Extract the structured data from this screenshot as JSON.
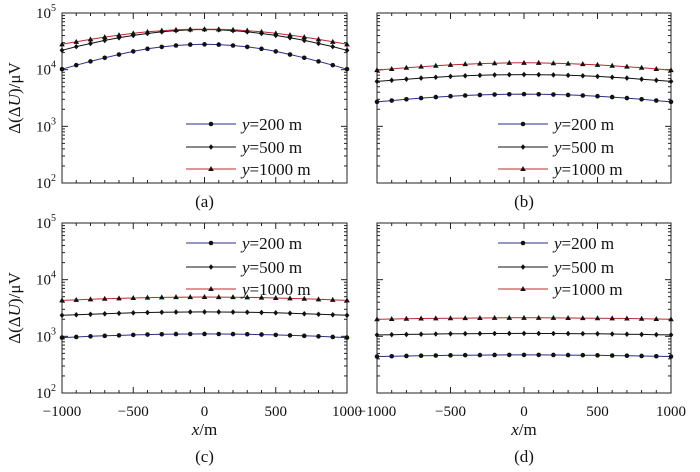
{
  "chart_data": [
    {
      "panel": "(a)",
      "type": "line",
      "ylabel": "Δ(ΔU)/μV",
      "xlabel": "",
      "xlim": [
        -1000,
        1000
      ],
      "ylim": [
        100,
        100000
      ],
      "yscale": "log",
      "legend_position": "bottom-right",
      "x": [
        -1000,
        -900,
        -800,
        -700,
        -600,
        -500,
        -400,
        -300,
        -200,
        -100,
        0,
        100,
        200,
        300,
        400,
        500,
        600,
        700,
        800,
        900,
        1000
      ],
      "series": [
        {
          "name": "y=200 m",
          "marker": "circle",
          "color": "#2b2d8c",
          "values": [
            10200,
            12000,
            14000,
            16200,
            18500,
            21000,
            23300,
            25200,
            26700,
            27700,
            28000,
            27700,
            26700,
            25200,
            23300,
            21000,
            18500,
            16200,
            14000,
            12000,
            10200
          ]
        },
        {
          "name": "y=500 m",
          "marker": "diamond",
          "color": "#111111",
          "values": [
            22000,
            25500,
            29000,
            32800,
            36500,
            40200,
            43500,
            46500,
            49000,
            50600,
            51200,
            50600,
            49000,
            46500,
            43500,
            40200,
            36500,
            32800,
            29000,
            25500,
            22000
          ]
        },
        {
          "name": "y=1000 m",
          "marker": "triangle",
          "color": "#c0282d",
          "values": [
            28000,
            31000,
            34200,
            37500,
            40800,
            43800,
            46500,
            48800,
            50500,
            51500,
            51800,
            51500,
            50500,
            48800,
            46500,
            43800,
            40800,
            37500,
            34200,
            31000,
            28000
          ]
        }
      ],
      "tick_labels_y": [
        "10^2",
        "10^3",
        "10^4",
        "10^5"
      ],
      "tick_labels_x": []
    },
    {
      "panel": "(b)",
      "type": "line",
      "ylabel": "",
      "xlabel": "",
      "xlim": [
        -1000,
        1000
      ],
      "ylim": [
        100,
        100000
      ],
      "yscale": "log",
      "legend_position": "bottom-right",
      "x": [
        -1000,
        -900,
        -800,
        -700,
        -600,
        -500,
        -400,
        -300,
        -200,
        -100,
        0,
        100,
        200,
        300,
        400,
        500,
        600,
        700,
        800,
        900,
        1000
      ],
      "series": [
        {
          "name": "y=200 m",
          "marker": "circle",
          "color": "#2b2d8c",
          "values": [
            2700,
            2850,
            3000,
            3150,
            3280,
            3400,
            3500,
            3580,
            3640,
            3680,
            3700,
            3680,
            3640,
            3580,
            3500,
            3400,
            3280,
            3150,
            3000,
            2850,
            2700
          ]
        },
        {
          "name": "y=500 m",
          "marker": "diamond",
          "color": "#111111",
          "values": [
            6200,
            6500,
            6800,
            7100,
            7350,
            7600,
            7800,
            7950,
            8080,
            8160,
            8200,
            8160,
            8080,
            7950,
            7800,
            7600,
            7350,
            7100,
            6800,
            6500,
            6200
          ]
        },
        {
          "name": "y=1000 m",
          "marker": "triangle",
          "color": "#c0282d",
          "values": [
            9800,
            10300,
            10800,
            11300,
            11750,
            12150,
            12500,
            12800,
            13000,
            13150,
            13200,
            13150,
            13000,
            12800,
            12500,
            12150,
            11750,
            11300,
            10800,
            10300,
            9800
          ]
        }
      ],
      "tick_labels_y": [],
      "tick_labels_x": []
    },
    {
      "panel": "(c)",
      "type": "line",
      "ylabel": "Δ(ΔU)/μV",
      "xlabel": "x/m",
      "xlim": [
        -1000,
        1000
      ],
      "ylim": [
        100,
        100000
      ],
      "yscale": "log",
      "legend_position": "top-right",
      "x": [
        -1000,
        -900,
        -800,
        -700,
        -600,
        -500,
        -400,
        -300,
        -200,
        -100,
        0,
        100,
        200,
        300,
        400,
        500,
        600,
        700,
        800,
        900,
        1000
      ],
      "series": [
        {
          "name": "y=200 m",
          "marker": "circle",
          "color": "#2b2d8c",
          "values": [
            950,
            975,
            1000,
            1020,
            1040,
            1060,
            1075,
            1088,
            1096,
            1100,
            1102,
            1100,
            1096,
            1088,
            1075,
            1060,
            1040,
            1020,
            1000,
            975,
            950
          ]
        },
        {
          "name": "y=500 m",
          "marker": "diamond",
          "color": "#111111",
          "values": [
            2350,
            2400,
            2450,
            2500,
            2550,
            2600,
            2630,
            2660,
            2680,
            2690,
            2700,
            2690,
            2680,
            2660,
            2630,
            2600,
            2550,
            2500,
            2450,
            2400,
            2350
          ]
        },
        {
          "name": "y=1000 m",
          "marker": "triangle",
          "color": "#c0282d",
          "values": [
            4300,
            4400,
            4500,
            4600,
            4680,
            4750,
            4820,
            4870,
            4910,
            4930,
            4940,
            4930,
            4910,
            4870,
            4820,
            4750,
            4680,
            4600,
            4500,
            4400,
            4300
          ]
        }
      ],
      "tick_labels_y": [
        "10^2",
        "10^3",
        "10^4",
        "10^5"
      ],
      "tick_labels_x": [
        "−1000",
        "−500",
        "0",
        "500",
        "1000"
      ]
    },
    {
      "panel": "(d)",
      "type": "line",
      "ylabel": "",
      "xlabel": "x/m",
      "xlim": [
        -1000,
        1000
      ],
      "ylim": [
        100,
        100000
      ],
      "yscale": "log",
      "legend_position": "top-right",
      "x": [
        -1000,
        -900,
        -800,
        -700,
        -600,
        -500,
        -400,
        -300,
        -200,
        -100,
        0,
        100,
        200,
        300,
        400,
        500,
        600,
        700,
        800,
        900,
        1000
      ],
      "series": [
        {
          "name": "y=200 m",
          "marker": "circle",
          "color": "#2b2d8c",
          "values": [
            440,
            445,
            450,
            455,
            458,
            462,
            465,
            467,
            469,
            470,
            470,
            470,
            469,
            467,
            465,
            462,
            458,
            455,
            450,
            445,
            440
          ]
        },
        {
          "name": "y=500 m",
          "marker": "diamond",
          "color": "#111111",
          "values": [
            1060,
            1070,
            1080,
            1090,
            1100,
            1108,
            1114,
            1119,
            1122,
            1124,
            1125,
            1124,
            1122,
            1119,
            1114,
            1108,
            1100,
            1090,
            1080,
            1070,
            1060
          ]
        },
        {
          "name": "y=1000 m",
          "marker": "triangle",
          "color": "#c0282d",
          "values": [
            2000,
            2020,
            2040,
            2060,
            2075,
            2090,
            2100,
            2110,
            2116,
            2120,
            2122,
            2120,
            2116,
            2110,
            2100,
            2090,
            2075,
            2060,
            2040,
            2020,
            2000
          ]
        }
      ],
      "tick_labels_y": [],
      "tick_labels_x": [
        "−1000",
        "−500",
        "0",
        "500",
        "1000"
      ]
    }
  ],
  "legend_prefix": "y",
  "legend_values": [
    "=200 m",
    "=500 m",
    "=1000 m"
  ],
  "ytick_base": "10",
  "ytick_exponents": [
    "2",
    "3",
    "4",
    "5"
  ],
  "ylabel_parts": {
    "open": "Δ(Δ",
    "var": "U",
    "close": ")/μV"
  },
  "xlabel_parts": {
    "var": "x",
    "unit": "/m"
  }
}
